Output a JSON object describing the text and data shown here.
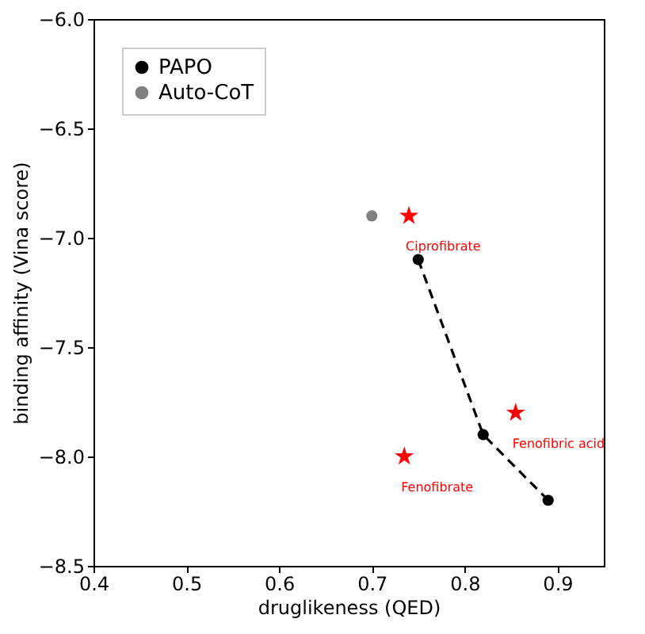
{
  "chart_data": {
    "type": "line",
    "xlabel": "druglikeness (QED)",
    "ylabel": "binding affinity (Vina score)",
    "xlim": [
      0.4,
      0.95
    ],
    "xticks": [
      0.4,
      0.5,
      0.6,
      0.7,
      0.8,
      0.9
    ],
    "ylim": [
      -8.5,
      -6.0
    ],
    "yticks": [
      {
        "value": -8.5,
        "label": "−8.5"
      },
      {
        "value": -8.0,
        "label": "−8.0"
      },
      {
        "value": -7.5,
        "label": "−7.5"
      },
      {
        "value": -7.0,
        "label": "−7.0"
      },
      {
        "value": -6.5,
        "label": "−6.5"
      },
      {
        "value": -6.0,
        "label": "−6.0"
      }
    ],
    "grid": false,
    "legend": "top left",
    "marker": "circle",
    "series": [
      {
        "name": "PAPO",
        "color": "#000000",
        "line_style": "dashed",
        "x": [
          0.75,
          0.82,
          0.89
        ],
        "values": [
          -7.1,
          -7.9,
          -8.2
        ]
      },
      {
        "name": "Auto-CoT",
        "color": "#808080",
        "line_style": "dashed",
        "x": [
          0.7
        ],
        "values": [
          -6.9
        ]
      },
      {
        "color": "#ff0000",
        "type": "scatter",
        "marker": "star",
        "x": [
          0.74,
          0.855,
          0.735
        ],
        "values": [
          -6.9,
          -7.8,
          -8.0
        ]
      }
    ],
    "annotations": [
      {
        "text": "Ciprofibrate",
        "x": 0.74,
        "y": -6.9
      },
      {
        "text": "Fenofibric acid",
        "x": 0.855,
        "y": -7.8
      },
      {
        "text": "Fenofibrate",
        "x": 0.735,
        "y": -8.0
      }
    ]
  }
}
